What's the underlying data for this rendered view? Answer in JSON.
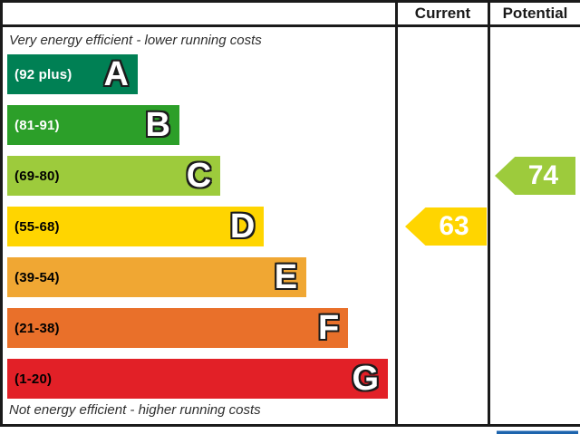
{
  "header": {
    "current_label": "Current",
    "potential_label": "Potential"
  },
  "captions": {
    "top": "Very energy efficient - lower running costs",
    "bottom": "Not energy efficient - higher running costs"
  },
  "bands": [
    {
      "letter": "A",
      "range": "(92 plus)",
      "color": "#008054",
      "range_text_color": "#ffffff",
      "width_pct": 33.8
    },
    {
      "letter": "B",
      "range": "(81-91)",
      "color": "#2c9f29",
      "range_text_color": "#ffffff",
      "width_pct": 44.6
    },
    {
      "letter": "C",
      "range": "(69-80)",
      "color": "#9dcb3c",
      "range_text_color": "#000000",
      "width_pct": 55.2
    },
    {
      "letter": "D",
      "range": "(55-68)",
      "color": "#ffd500",
      "range_text_color": "#000000",
      "width_pct": 66.5
    },
    {
      "letter": "E",
      "range": "(39-54)",
      "color": "#f0a733",
      "range_text_color": "#000000",
      "width_pct": 77.5
    },
    {
      "letter": "F",
      "range": "(21-38)",
      "color": "#e9702a",
      "range_text_color": "#000000",
      "width_pct": 88.3
    },
    {
      "letter": "G",
      "range": "(1-20)",
      "color": "#e22027",
      "range_text_color": "#000000",
      "width_pct": 98.6
    }
  ],
  "markers": {
    "current": {
      "value": "63",
      "band": "D",
      "color": "#ffd500",
      "text_color": "#ffffff"
    },
    "potential": {
      "value": "74",
      "band": "C",
      "color": "#9dcb3c",
      "text_color": "#ffffff"
    }
  },
  "chart_data": {
    "type": "bar",
    "chart_kind": "energy-efficiency-rating",
    "scale": [
      1,
      100
    ],
    "top_label": "Very energy efficient - lower running costs",
    "bottom_label": "Not energy efficient - higher running costs",
    "columns": [
      "Current",
      "Potential"
    ],
    "bands": [
      {
        "letter": "A",
        "range": "92 plus",
        "color": "#008054"
      },
      {
        "letter": "B",
        "range": "81-91",
        "color": "#2c9f29"
      },
      {
        "letter": "C",
        "range": "69-80",
        "color": "#9dcb3c"
      },
      {
        "letter": "D",
        "range": "55-68",
        "color": "#ffd500"
      },
      {
        "letter": "E",
        "range": "39-54",
        "color": "#f0a733"
      },
      {
        "letter": "F",
        "range": "21-38",
        "color": "#e9702a"
      },
      {
        "letter": "G",
        "range": "1-20",
        "color": "#e22027"
      }
    ],
    "series": [
      {
        "name": "Current",
        "values": [
          63
        ],
        "band": "D",
        "color": "#ffd500"
      },
      {
        "name": "Potential",
        "values": [
          74
        ],
        "band": "C",
        "color": "#9dcb3c"
      }
    ]
  }
}
